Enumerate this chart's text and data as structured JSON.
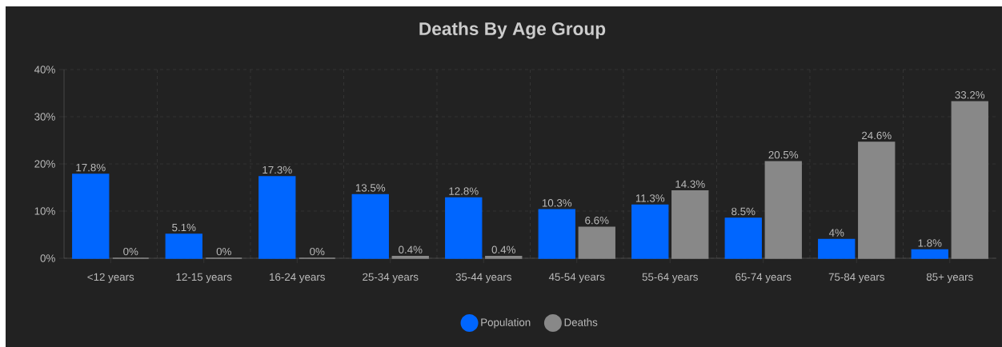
{
  "chart_data": {
    "type": "bar",
    "title": "Deaths By Age Group",
    "categories": [
      "<12 years",
      "12-15 years",
      "16-24 years",
      "25-34 years",
      "35-44 years",
      "45-54 years",
      "55-64 years",
      "65-74 years",
      "75-84 years",
      "85+ years"
    ],
    "series": [
      {
        "name": "Population",
        "color": "#0066ff",
        "values": [
          17.8,
          5.1,
          17.3,
          13.5,
          12.8,
          10.3,
          11.3,
          8.5,
          4,
          1.8
        ],
        "value_labels": [
          "17.8%",
          "5.1%",
          "17.3%",
          "13.5%",
          "12.8%",
          "10.3%",
          "11.3%",
          "8.5%",
          "4%",
          "1.8%"
        ]
      },
      {
        "name": "Deaths",
        "color": "#888888",
        "values": [
          0,
          0,
          0,
          0.4,
          0.4,
          6.6,
          14.3,
          20.5,
          24.6,
          33.2
        ],
        "value_labels": [
          "0%",
          "0%",
          "0%",
          "0.4%",
          "0.4%",
          "6.6%",
          "14.3%",
          "20.5%",
          "24.6%",
          "33.2%"
        ]
      }
    ],
    "ylim": [
      0,
      40
    ],
    "yticks": [
      {
        "value": 0,
        "label": "0%"
      },
      {
        "value": 10,
        "label": "10%"
      },
      {
        "value": 20,
        "label": "20%"
      },
      {
        "value": 30,
        "label": "30%"
      },
      {
        "value": 40,
        "label": "40%"
      }
    ],
    "grid": true,
    "legend": "bottom"
  }
}
